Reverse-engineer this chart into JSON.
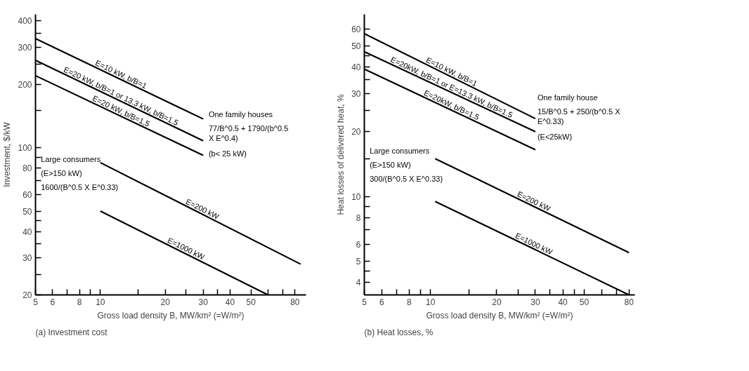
{
  "chart_data": [
    {
      "type": "line",
      "title": "(a) Investment cost",
      "xlabel": "Gross load density B, MW/km² (=W/m²)",
      "ylabel": "Investment, $/kW",
      "log": "xy",
      "grid": false,
      "legend": false,
      "xlim": [
        5,
        90
      ],
      "ylim": [
        20,
        430
      ],
      "xticks": [
        5,
        6,
        {
          "value": 7,
          "label": null
        },
        8,
        {
          "value": 9,
          "label": null
        },
        10,
        {
          "value": 15,
          "label": null
        },
        20,
        {
          "value": 25,
          "label": null
        },
        30,
        {
          "value": 35,
          "label": null
        },
        40,
        50,
        {
          "value": 60,
          "label": null
        },
        {
          "value": 70,
          "label": null
        },
        80
      ],
      "yticks": [
        20,
        {
          "value": 25,
          "label": null
        },
        30,
        {
          "value": 35,
          "label": null
        },
        40,
        {
          "value": 45,
          "label": null
        },
        50,
        60,
        {
          "value": 70,
          "label": null
        },
        80,
        {
          "value": 90,
          "label": null
        },
        100,
        {
          "value": 150,
          "label": null
        },
        200,
        {
          "value": 250,
          "label": null
        },
        300,
        {
          "value": 350,
          "label": null
        },
        400
      ],
      "series": [
        {
          "name": "E=10 kW, b/B=1",
          "color": "#000000",
          "x": [
            5,
            30
          ],
          "values": [
            330,
            137
          ]
        },
        {
          "name": "E=20 kW, b/B=1 or 13.3 kW, b/B=1.5",
          "color": "#000000",
          "x": [
            5,
            30
          ],
          "values": [
            260,
            108
          ]
        },
        {
          "name": "E=20 kW, b/B=1,5",
          "color": "#000000",
          "x": [
            5,
            30
          ],
          "values": [
            220,
            92
          ]
        },
        {
          "name": "E=200 kW",
          "color": "#000000",
          "x": [
            10,
            85
          ],
          "values": [
            85,
            28
          ]
        },
        {
          "name": "E=1000 kW",
          "color": "#000000",
          "x": [
            10,
            60
          ],
          "values": [
            50,
            20
          ]
        }
      ],
      "annotations": [
        "One family houses",
        "77/B^0.5 + 1790/(b^0.5 X E^0.4)",
        "(b< 25 kW)",
        "Large consumers",
        "(E>150 kW)",
        "1600/(B^0.5 X E^0.33)"
      ]
    },
    {
      "type": "line",
      "title": "(b) Heat losses, %",
      "xlabel": "Gross load density B, MW/km² (=W/m²)",
      "ylabel": "Heat losses of delivered heat, %",
      "log": "xy",
      "grid": false,
      "legend": false,
      "xlim": [
        5,
        85
      ],
      "ylim": [
        3.5,
        70
      ],
      "xticks": [
        5,
        6,
        {
          "value": 7,
          "label": null
        },
        8,
        {
          "value": 9,
          "label": null
        },
        10,
        {
          "value": 15,
          "label": null
        },
        20,
        {
          "value": 25,
          "label": null
        },
        30,
        {
          "value": 35,
          "label": null
        },
        40,
        {
          "value": 45,
          "label": null
        },
        50,
        {
          "value": 60,
          "label": null
        },
        {
          "value": 70,
          "label": null
        },
        80
      ],
      "yticks": [
        4,
        {
          "value": 4.5,
          "label": null
        },
        5,
        6,
        {
          "value": 7,
          "label": null
        },
        8,
        {
          "value": 9,
          "label": null
        },
        10,
        {
          "value": 15,
          "label": null
        },
        20,
        {
          "value": 25,
          "label": null
        },
        30,
        {
          "value": 35,
          "label": null
        },
        40,
        {
          "value": 45,
          "label": null
        },
        50,
        60
      ],
      "series": [
        {
          "name": "E=10 kW, b/B=1",
          "color": "#000000",
          "x": [
            5,
            30
          ],
          "values": [
            57,
            23
          ]
        },
        {
          "name": "E=20kW, b/B=1 or E=13.3 kW, b/B=1.5",
          "color": "#000000",
          "x": [
            5,
            30
          ],
          "values": [
            47,
            20
          ]
        },
        {
          "name": "E=20kW, b/B=1.5",
          "color": "#000000",
          "x": [
            5,
            30
          ],
          "values": [
            39,
            16.5
          ]
        },
        {
          "name": "E=200 kW",
          "color": "#000000",
          "x": [
            10.5,
            80
          ],
          "values": [
            15,
            5.5
          ]
        },
        {
          "name": "E=1000 kW",
          "color": "#000000",
          "x": [
            10.5,
            80
          ],
          "values": [
            9.5,
            3.5
          ]
        }
      ],
      "annotations": [
        "One family house",
        "15/B^0.5 + 250/(b^0.5 X E^0.33)",
        "(E<25kW)",
        "Large consumers",
        "(E>150 kW)",
        "300/(B^0.5 X E^0.33)"
      ]
    }
  ]
}
